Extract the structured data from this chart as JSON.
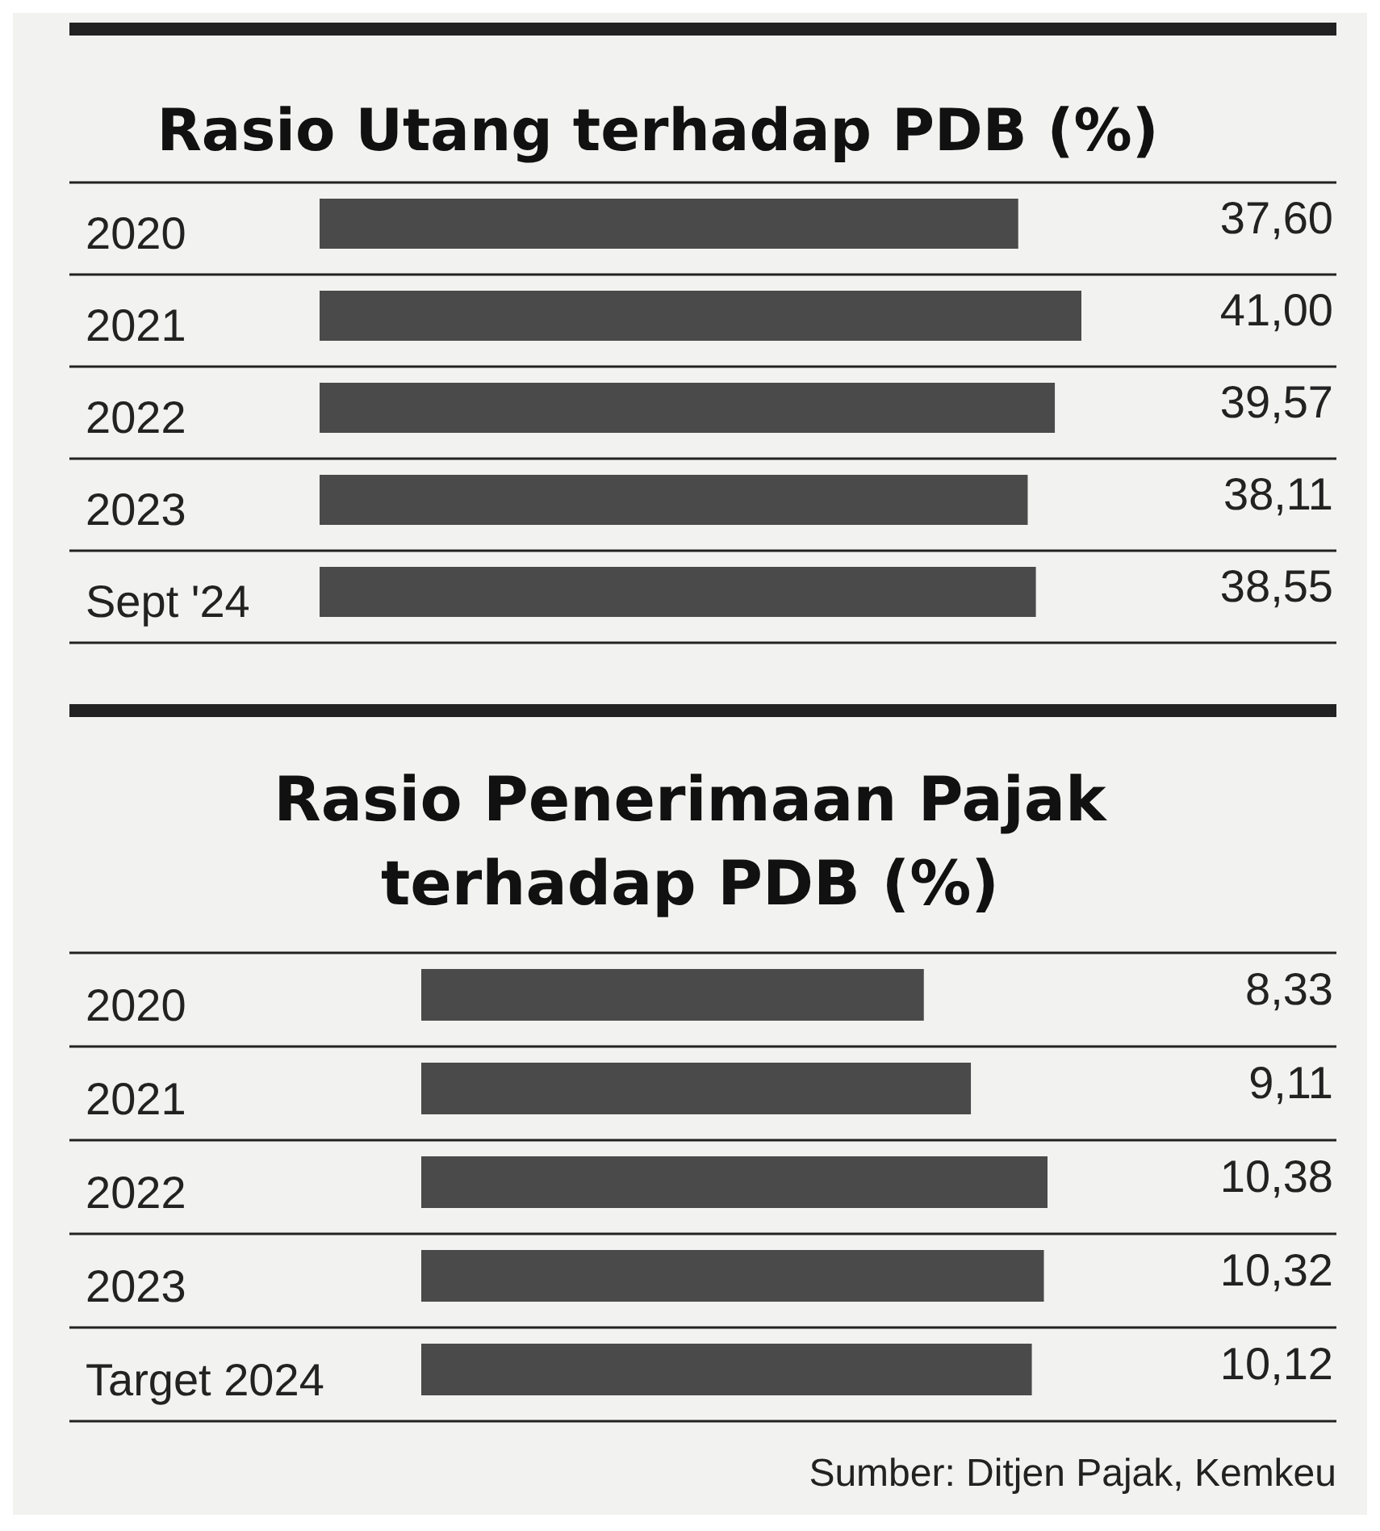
{
  "chart_data": [
    {
      "type": "bar",
      "orientation": "horizontal",
      "title": "Rasio Utang terhadap PDB (%)",
      "categories": [
        "2020",
        "2021",
        "2022",
        "2023",
        "Sept '24"
      ],
      "values": [
        37.6,
        41.0,
        39.57,
        38.11,
        38.55
      ],
      "value_labels": [
        "37,60",
        "41,00",
        "39,57",
        "38,11",
        "38,55"
      ],
      "color": "#4a4a4a"
    },
    {
      "type": "bar",
      "orientation": "horizontal",
      "title": "Rasio Penerimaan Pajak terhadap PDB (%)",
      "categories": [
        "2020",
        "2021",
        "2022",
        "2023",
        "Target 2024"
      ],
      "values": [
        8.33,
        9.11,
        10.38,
        10.32,
        10.12
      ],
      "value_labels": [
        "8,33",
        "9,11",
        "10,38",
        "10,32",
        "10,12"
      ],
      "color": "#4a4a4a",
      "annotations": [
        "Sumber: Ditjen Pajak, Kemkeu"
      ]
    }
  ]
}
